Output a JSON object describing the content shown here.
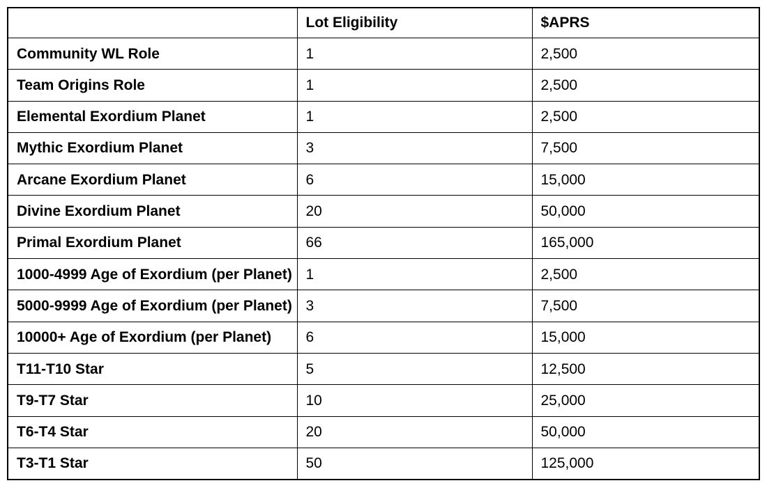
{
  "page": {
    "background_color": "#ffffff"
  },
  "table": {
    "border_color": "#000000",
    "text_color": "#000000",
    "columns": [
      {
        "label": ""
      },
      {
        "label": "Lot Eligibility"
      },
      {
        "label": "$APRS"
      }
    ],
    "rows": [
      {
        "label": "Community WL Role",
        "lot_eligibility": "1",
        "aprs": "2,500"
      },
      {
        "label": "Team Origins Role",
        "lot_eligibility": "1",
        "aprs": "2,500"
      },
      {
        "label": "Elemental Exordium Planet",
        "lot_eligibility": "1",
        "aprs": "2,500"
      },
      {
        "label": "Mythic Exordium Planet",
        "lot_eligibility": "3",
        "aprs": "7,500"
      },
      {
        "label": "Arcane Exordium Planet",
        "lot_eligibility": "6",
        "aprs": "15,000"
      },
      {
        "label": "Divine Exordium Planet",
        "lot_eligibility": "20",
        "aprs": "50,000"
      },
      {
        "label": "Primal Exordium Planet",
        "lot_eligibility": "66",
        "aprs": "165,000"
      },
      {
        "label": "1000-4999 Age of Exordium (per Planet)",
        "lot_eligibility": "1",
        "aprs": "2,500"
      },
      {
        "label": "5000-9999 Age of Exordium (per Planet)",
        "lot_eligibility": "3",
        "aprs": "7,500"
      },
      {
        "label": "10000+ Age of Exordium (per Planet)",
        "lot_eligibility": "6",
        "aprs": "15,000"
      },
      {
        "label": "T11-T10 Star",
        "lot_eligibility": "5",
        "aprs": "12,500"
      },
      {
        "label": "T9-T7 Star",
        "lot_eligibility": "10",
        "aprs": "25,000"
      },
      {
        "label": "T6-T4 Star",
        "lot_eligibility": "20",
        "aprs": "50,000"
      },
      {
        "label": "T3-T1 Star",
        "lot_eligibility": "50",
        "aprs": "125,000"
      }
    ]
  }
}
